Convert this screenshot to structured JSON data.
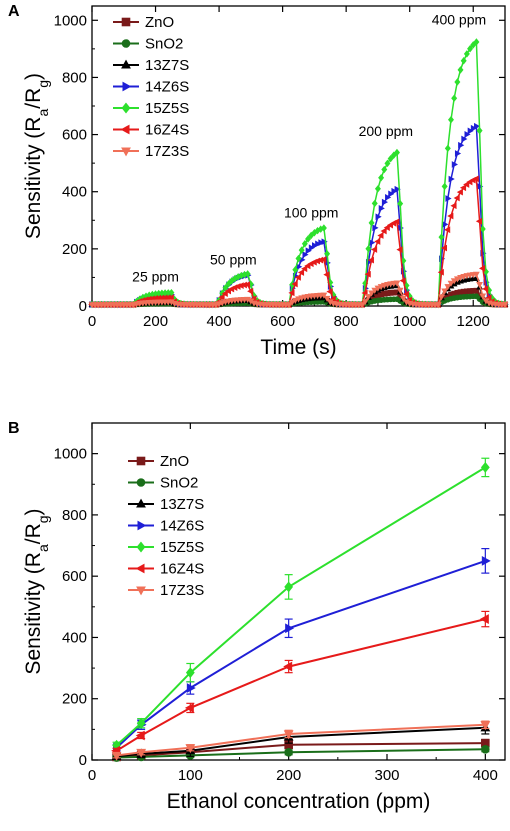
{
  "chart_data": [
    {
      "panel_label": "A",
      "type": "line",
      "xlabel": "Time (s)",
      "ylabel_main": "Sensitivity (R",
      "ylabel_sub1": "a",
      "ylabel_mid": "/R",
      "ylabel_sub2": "g",
      "ylabel_end": ")",
      "xlim": [
        0,
        1300
      ],
      "ylim": [
        0,
        1050
      ],
      "x_ticks": [
        "0",
        "200",
        "400",
        "600",
        "800",
        "1000",
        "1200"
      ],
      "y_ticks": [
        "0",
        "200",
        "400",
        "600",
        "800",
        "1000"
      ],
      "legend_position": "top-left",
      "annotations": [
        {
          "text": "25 ppm",
          "x": 200,
          "y": 85
        },
        {
          "text": "50 ppm",
          "x": 445,
          "y": 145
        },
        {
          "text": "100 ppm",
          "x": 690,
          "y": 310
        },
        {
          "text": "200 ppm",
          "x": 925,
          "y": 595
        },
        {
          "text": "400 ppm",
          "x": 1155,
          "y": 985
        }
      ],
      "pulses": [
        {
          "concentration": "25 ppm",
          "on": 130,
          "off": 250
        },
        {
          "concentration": "50 ppm",
          "on": 395,
          "off": 495
        },
        {
          "concentration": "100 ppm",
          "on": 620,
          "off": 735
        },
        {
          "concentration": "200 ppm",
          "on": 855,
          "off": 965
        },
        {
          "concentration": "400 ppm",
          "on": 1090,
          "off": 1215
        }
      ],
      "baseline": 5,
      "series": [
        {
          "name": "ZnO",
          "color": "#7a1a1a",
          "marker": "square",
          "peaks": [
            10,
            15,
            25,
            50,
            55
          ]
        },
        {
          "name": "SnO2",
          "color": "#1a6e1a",
          "marker": "circle",
          "peaks": [
            8,
            10,
            15,
            25,
            35
          ]
        },
        {
          "name": "13Z7S",
          "color": "#000000",
          "marker": "triangle-up",
          "peaks": [
            12,
            20,
            30,
            75,
            100
          ]
        },
        {
          "name": "14Z6S",
          "color": "#1f1fd6",
          "marker": "triangle-right",
          "peaks": [
            40,
            115,
            235,
            430,
            650
          ]
        },
        {
          "name": "15Z5S",
          "color": "#2de02d",
          "marker": "diamond",
          "peaks": [
            48,
            120,
            285,
            565,
            955
          ]
        },
        {
          "name": "16Z4S",
          "color": "#e61a1a",
          "marker": "triangle-left",
          "peaks": [
            30,
            80,
            170,
            310,
            460
          ]
        },
        {
          "name": "17Z3S",
          "color": "#f07058",
          "marker": "triangle-down",
          "peaks": [
            15,
            25,
            40,
            85,
            115
          ]
        }
      ]
    },
    {
      "panel_label": "B",
      "type": "line",
      "xlabel": "Ethanol concentration (ppm)",
      "ylabel_main": "Sensitivity (R",
      "ylabel_sub1": "a",
      "ylabel_mid": "/R",
      "ylabel_sub2": "g",
      "ylabel_end": ")",
      "xlim": [
        0,
        420
      ],
      "ylim": [
        0,
        1100
      ],
      "x_ticks": [
        "0",
        "100",
        "200",
        "300",
        "400"
      ],
      "y_ticks": [
        "0",
        "200",
        "400",
        "600",
        "800",
        "1000"
      ],
      "legend_position": "top-left",
      "x": [
        25,
        50,
        100,
        200,
        400
      ],
      "series": [
        {
          "name": "ZnO",
          "color": "#7a1a1a",
          "marker": "square",
          "values": [
            10,
            15,
            25,
            50,
            55
          ],
          "error": [
            8,
            8,
            10,
            12,
            12
          ]
        },
        {
          "name": "SnO2",
          "color": "#1a6e1a",
          "marker": "circle",
          "values": [
            8,
            10,
            15,
            25,
            35
          ],
          "error": [
            5,
            5,
            6,
            8,
            8
          ]
        },
        {
          "name": "13Z7S",
          "color": "#000000",
          "marker": "triangle-up",
          "values": [
            12,
            20,
            30,
            75,
            105
          ],
          "error": [
            10,
            12,
            18,
            20,
            20
          ]
        },
        {
          "name": "14Z6S",
          "color": "#1f1fd6",
          "marker": "triangle-right",
          "values": [
            40,
            115,
            235,
            430,
            650
          ],
          "error": [
            10,
            15,
            20,
            30,
            40
          ]
        },
        {
          "name": "15Z5S",
          "color": "#2de02d",
          "marker": "diamond",
          "values": [
            48,
            120,
            285,
            565,
            955
          ],
          "error": [
            10,
            15,
            30,
            40,
            30
          ]
        },
        {
          "name": "16Z4S",
          "color": "#e61a1a",
          "marker": "triangle-left",
          "values": [
            30,
            80,
            170,
            305,
            460
          ],
          "error": [
            8,
            10,
            15,
            20,
            25
          ]
        },
        {
          "name": "17Z3S",
          "color": "#f07058",
          "marker": "triangle-down",
          "values": [
            15,
            25,
            40,
            85,
            115
          ],
          "error": [
            8,
            8,
            10,
            12,
            12
          ]
        }
      ]
    }
  ]
}
